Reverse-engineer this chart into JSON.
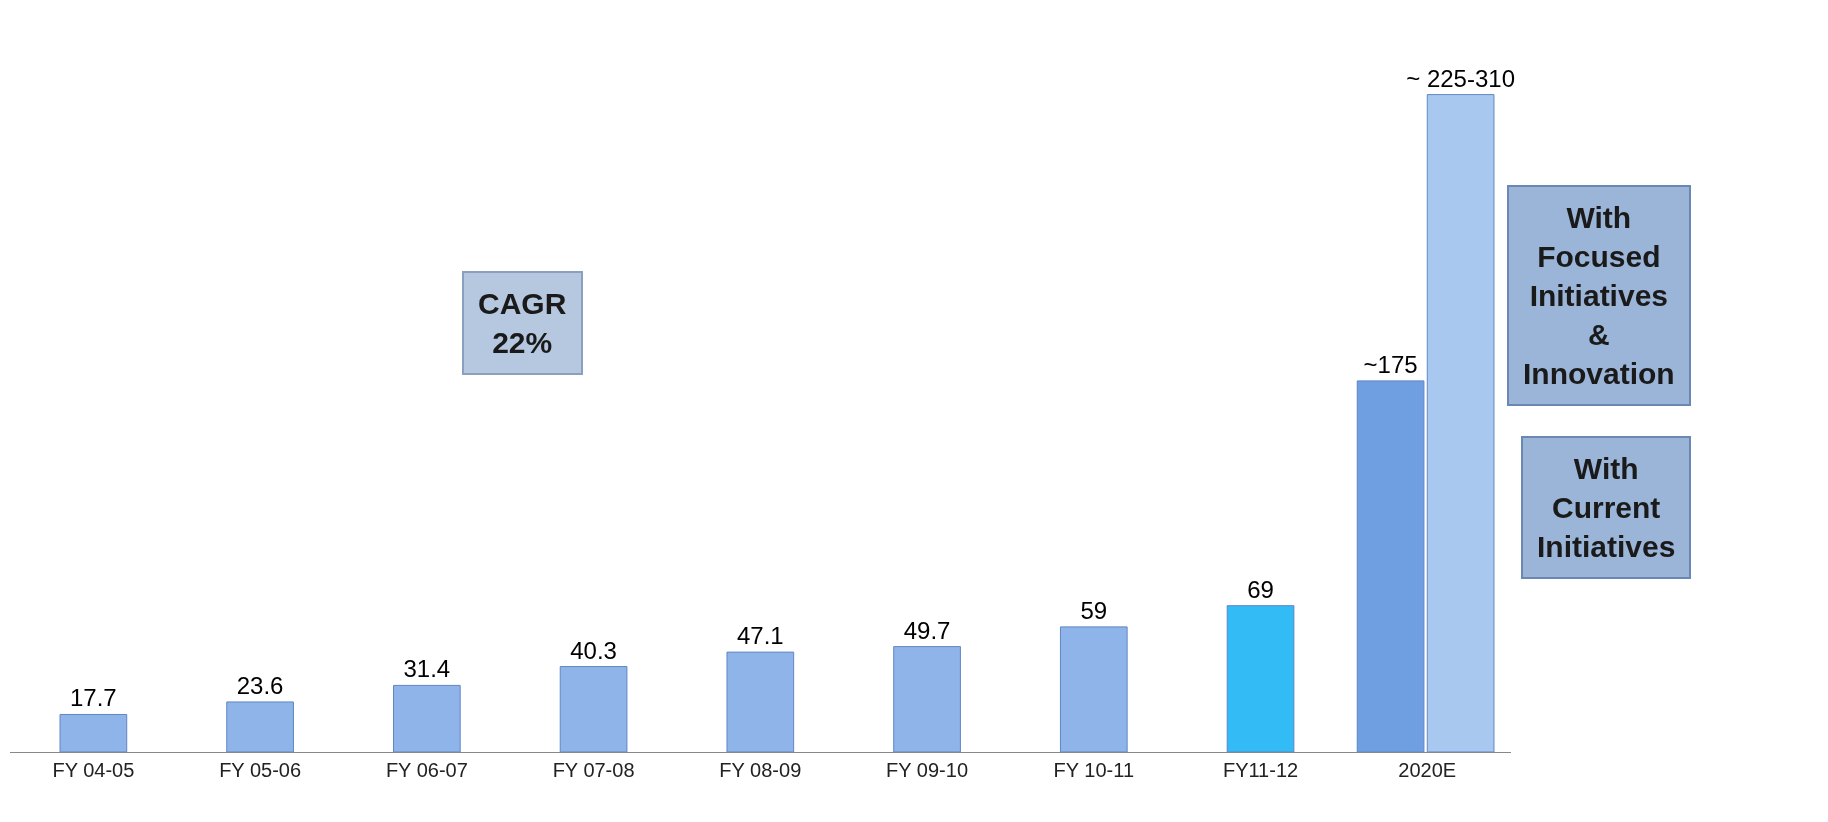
{
  "chart_data": {
    "type": "bar",
    "categories": [
      "FY 04-05",
      "FY 05-06",
      "FY 06-07",
      "FY 07-08",
      "FY 08-09",
      "FY 09-10",
      "FY 10-11",
      "FY11-12",
      "2020E"
    ],
    "series": [
      {
        "colors": [
          "#8fb4ea",
          "#8fb4ea",
          "#8fb4ea",
          "#8fb4ea",
          "#8fb4ea",
          "#8fb4ea",
          "#8fb4ea",
          "#33bbf5",
          "#6f9fe0"
        ],
        "values": [
          17.7,
          23.6,
          31.4,
          40.3,
          47.1,
          49.7,
          59,
          69,
          175
        ],
        "value_labels": [
          "17.7",
          "23.6",
          "31.4",
          "40.3",
          "47.1",
          "49.7",
          "59",
          "69",
          "~175"
        ]
      },
      {
        "colors": [
          null,
          null,
          null,
          null,
          null,
          null,
          null,
          null,
          "#a9c8f0"
        ],
        "values": [
          null,
          null,
          null,
          null,
          null,
          null,
          null,
          null,
          310
        ],
        "value_labels": [
          null,
          null,
          null,
          null,
          null,
          null,
          null,
          null,
          "~ 225-310"
        ]
      }
    ],
    "annotations": [
      "CAGR\n22%",
      "With\nFocused\nInitiatives\n&\nInnovation",
      "With\nCurrent\nInitiatives"
    ],
    "legend": false
  }
}
